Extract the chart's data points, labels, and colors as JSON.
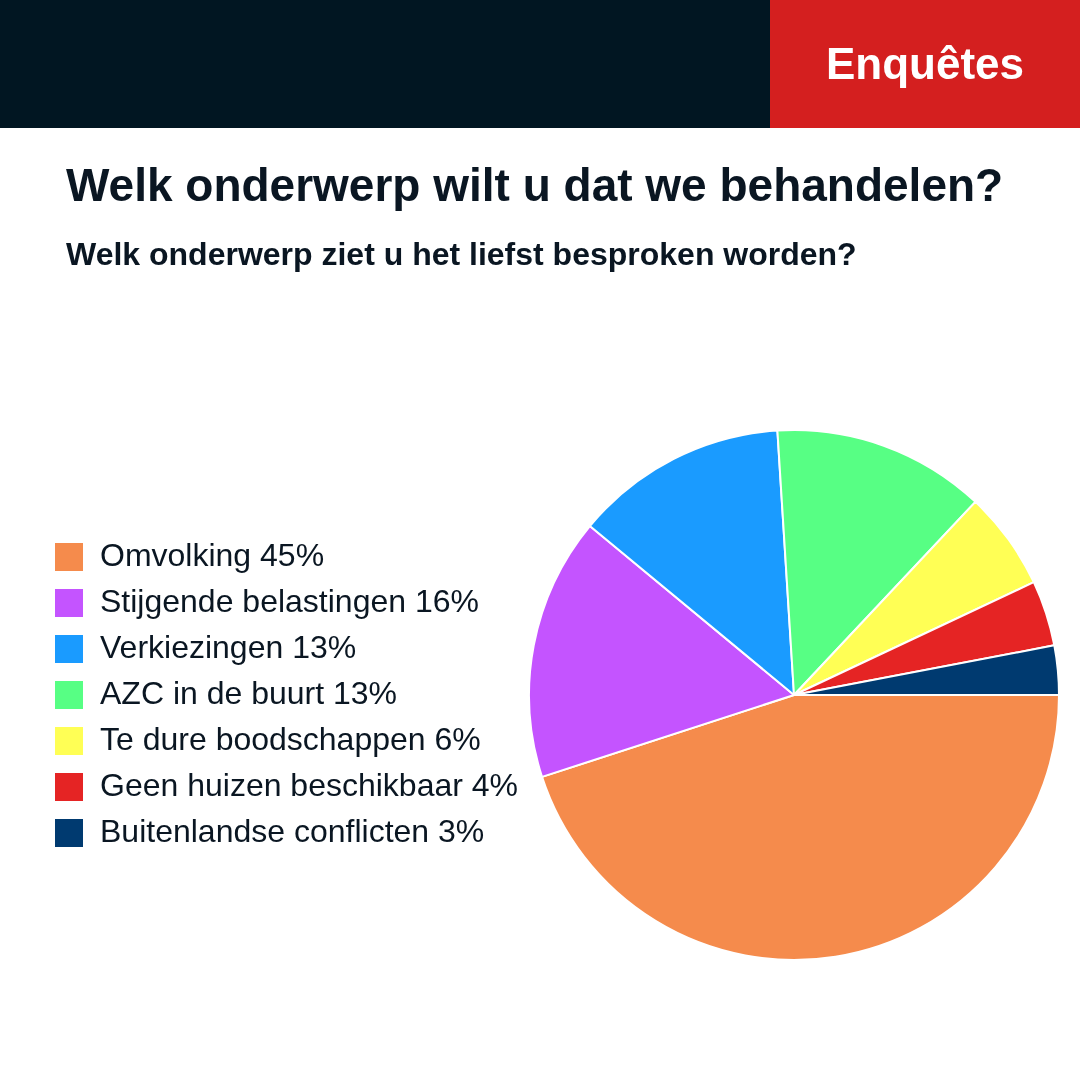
{
  "chart_data": {
    "type": "pie",
    "title": "Welk onderwerp wilt u dat we behandelen?",
    "subtitle": "Welk onderwerp ziet u het liefst besproken worden?",
    "annotations": [
      "Enquêtes"
    ],
    "categories": [
      "Omvolking",
      "Stijgende belastingen",
      "Verkiezingen",
      "AZC in de buurt",
      "Te dure boodschappen",
      "Geen huizen beschikbaar",
      "Buitenlandse conflicten"
    ],
    "values": [
      45,
      16,
      13,
      13,
      6,
      4,
      3
    ],
    "value_labels": [
      "45%",
      "16%",
      "13%",
      "13%",
      "6%",
      "4%",
      "3%"
    ],
    "colors": [
      "#f58b4c",
      "#c454ff",
      "#1a9bff",
      "#57ff84",
      "#ffff55",
      "#e52424",
      "#003a70"
    ],
    "legend": "left"
  }
}
